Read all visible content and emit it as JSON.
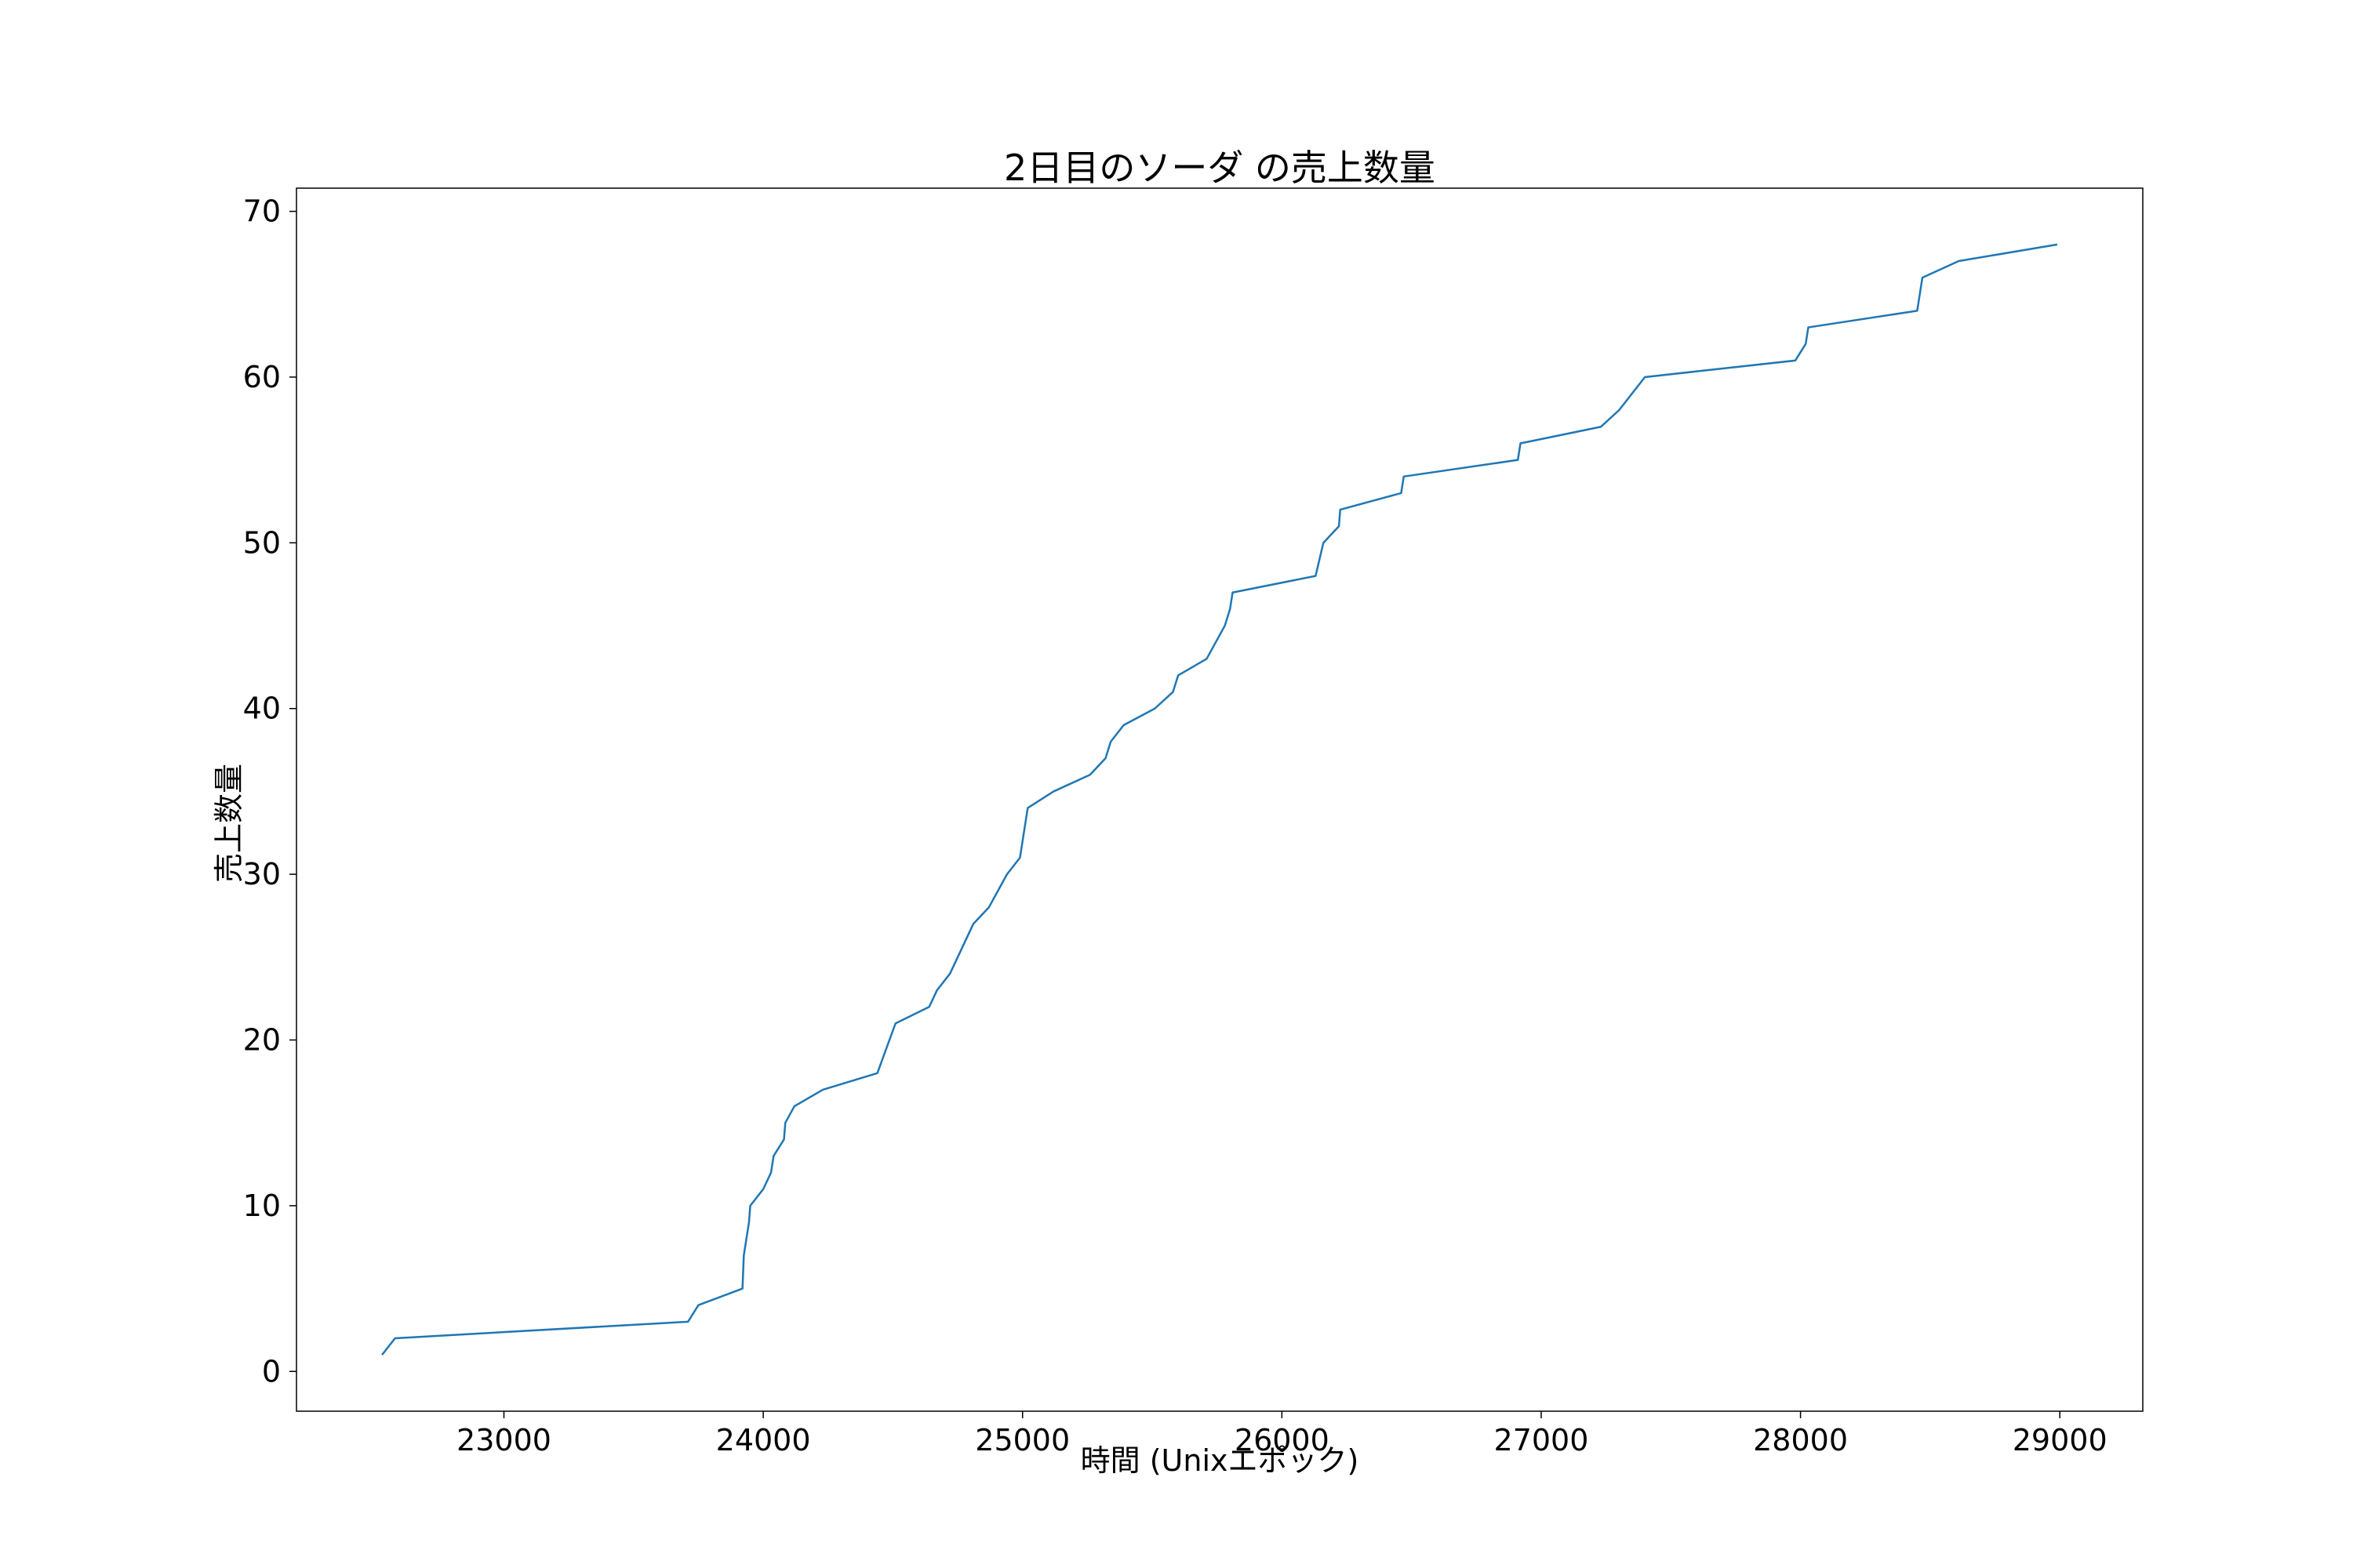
{
  "chart_data": {
    "type": "line",
    "title": "2日目のソーダ の売上数量",
    "xlabel": "時間 (Unixエポック)",
    "ylabel": "売上数量",
    "xlim": [
      22200,
      29320
    ],
    "ylim": [
      -2.4,
      71.4
    ],
    "x_ticks": [
      23000,
      24000,
      25000,
      26000,
      27000,
      28000,
      29000
    ],
    "y_ticks": [
      0,
      10,
      20,
      30,
      40,
      50,
      60,
      70
    ],
    "grid": false,
    "series": [
      {
        "color": "#1f77b4",
        "x": [
          22530,
          22580,
          23710,
          23750,
          23920,
          23925,
          23935,
          23945,
          23950,
          24000,
          24030,
          24040,
          24080,
          24085,
          24120,
          24230,
          24440,
          24510,
          24640,
          24670,
          24720,
          24810,
          24870,
          24940,
          24990,
          25020,
          25120,
          25260,
          25320,
          25340,
          25390,
          25510,
          25580,
          25600,
          25710,
          25780,
          25800,
          25810,
          26130,
          26160,
          26220,
          26225,
          26460,
          26470,
          26910,
          26920,
          27230,
          27300,
          27400,
          27980,
          28020,
          28030,
          28450,
          28470,
          28610,
          28990
        ],
        "y": [
          1,
          2,
          3,
          4,
          5,
          7,
          8,
          9,
          10,
          11,
          12,
          13,
          14,
          15,
          16,
          17,
          18,
          21,
          22,
          23,
          24,
          27,
          28,
          30,
          31,
          34,
          35,
          36,
          37,
          38,
          39,
          40,
          41,
          42,
          43,
          45,
          46,
          47,
          48,
          50,
          51,
          52,
          53,
          54,
          55,
          56,
          57,
          58,
          60,
          61,
          62,
          63,
          64,
          66,
          67,
          68
        ]
      }
    ]
  }
}
